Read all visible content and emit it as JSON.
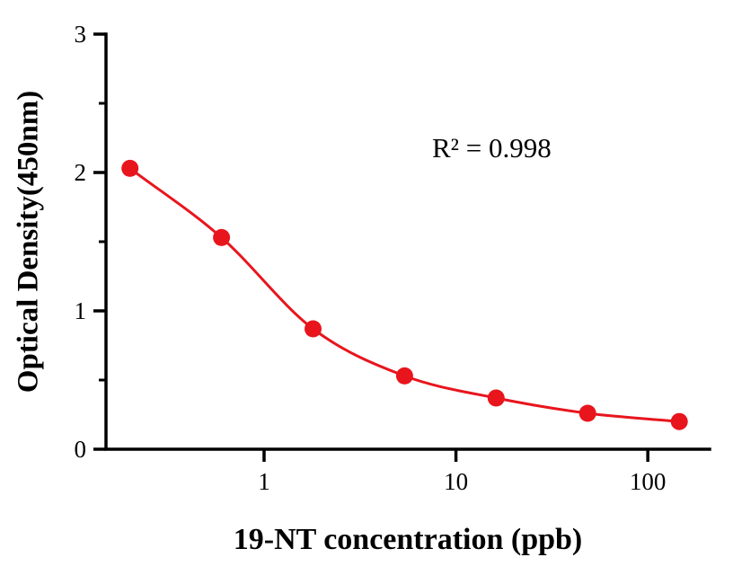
{
  "chart_data": {
    "type": "scatter",
    "title": "",
    "xlabel": "19-NT concentration (ppb)",
    "ylabel": "Optical Density(450nm)",
    "annotation": "R² = 0.998",
    "x_scale": "log",
    "grid": false,
    "legend": "none",
    "x": [
      0.2,
      0.6,
      1.8,
      5.4,
      16.2,
      48.6,
      145.8
    ],
    "y": [
      2.03,
      1.53,
      0.87,
      0.53,
      0.37,
      0.26,
      0.2
    ],
    "xlim": [
      0.15,
      210
    ],
    "ylim": [
      0,
      3
    ],
    "x_ticks": [
      1,
      10,
      100
    ],
    "x_tick_labels": [
      "1",
      "10",
      "100"
    ],
    "y_ticks": [
      0,
      1,
      2,
      3
    ],
    "y_tick_labels": [
      "0",
      "1",
      "2",
      "3"
    ],
    "y_minor_ticks": [
      0.5,
      1.5,
      2.5
    ],
    "line_color": "#e8151d",
    "marker_color": "#e8151d",
    "axis_color": "#000000",
    "background": "#ffffff",
    "marker_radius": 9.5,
    "line_width": 3
  }
}
